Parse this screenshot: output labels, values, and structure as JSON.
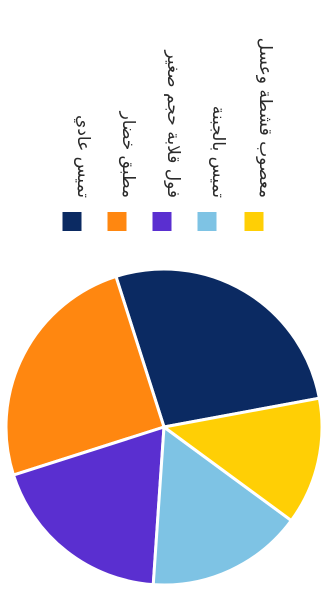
{
  "chart_data": {
    "type": "pie",
    "labels": [
      "تميس عادي",
      "مطبق خضار",
      "فول قلابة حجم صغير",
      "تميس بالجبنة",
      "معصوب قشطة وعسل"
    ],
    "values": [
      27,
      25,
      19,
      16,
      13
    ],
    "colors": [
      "#0b2a62",
      "#ff8710",
      "#5a2fd0",
      "#7ec3e4",
      "#ffcf05"
    ],
    "legend_position": "top",
    "orientation": "rotated 90° clockwise"
  }
}
